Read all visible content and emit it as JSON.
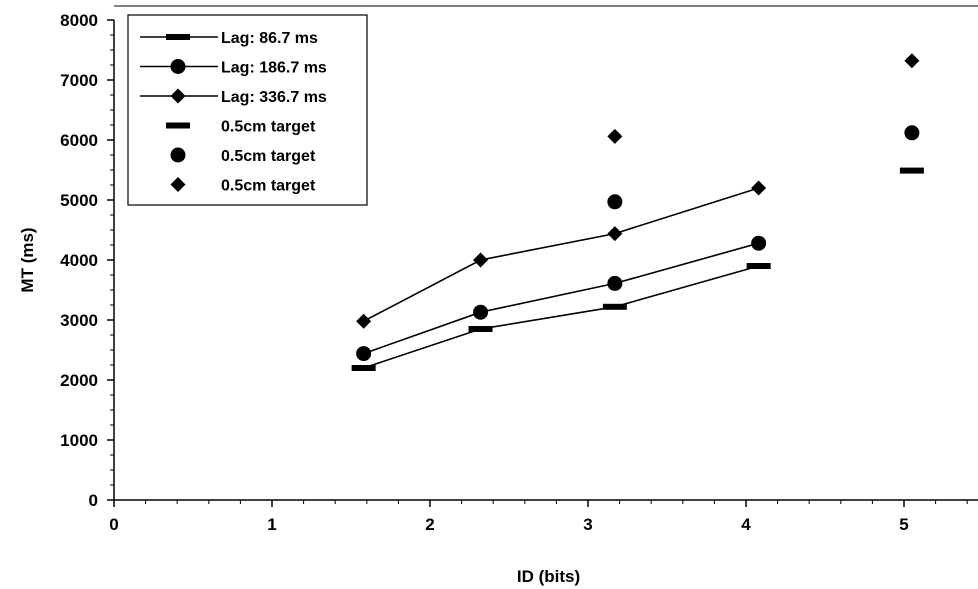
{
  "chart_data": {
    "type": "line",
    "xlabel": "ID (bits)",
    "ylabel": "MT (ms)",
    "xlim": [
      0,
      5.5
    ],
    "ylim": [
      0,
      8000
    ],
    "x_ticks": [
      "0",
      "1",
      "2",
      "3",
      "4",
      "5"
    ],
    "y_ticks": [
      "0",
      "1000",
      "2000",
      "3000",
      "4000",
      "5000",
      "6000",
      "7000",
      "8000"
    ],
    "grid": false,
    "legend_position": "top-left",
    "series": [
      {
        "name": "Lag: 86.7 ms",
        "marker": "dash",
        "line": true,
        "x": [
          1.58,
          2.32,
          3.17,
          4.08
        ],
        "y": [
          2200,
          2850,
          3220,
          3900
        ]
      },
      {
        "name": "Lag: 186.7 ms",
        "marker": "circle",
        "line": true,
        "x": [
          1.58,
          2.32,
          3.17,
          4.08
        ],
        "y": [
          2440,
          3130,
          3610,
          4280
        ]
      },
      {
        "name": "Lag: 336.7 ms",
        "marker": "diamond",
        "line": true,
        "x": [
          1.58,
          2.32,
          3.17,
          4.08
        ],
        "y": [
          2980,
          4000,
          4440,
          5200
        ]
      },
      {
        "name": "0.5cm target",
        "marker": "dash",
        "line": false,
        "x": [
          5.05
        ],
        "y": [
          5490
        ]
      },
      {
        "name": "0.5cm target",
        "marker": "circle",
        "line": false,
        "x": [
          3.17,
          5.05
        ],
        "y": [
          4970,
          6120
        ]
      },
      {
        "name": "0.5cm target",
        "marker": "diamond",
        "line": false,
        "x": [
          3.17,
          5.05
        ],
        "y": [
          6060,
          7320
        ]
      }
    ]
  }
}
